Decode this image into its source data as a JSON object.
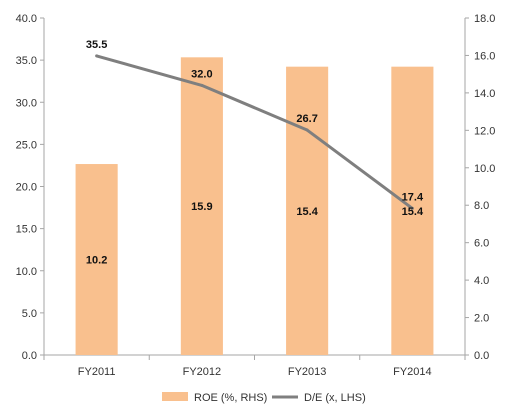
{
  "chart_data": {
    "type": "bar",
    "categories": [
      "FY2011",
      "FY2012",
      "FY2013",
      "FY2014"
    ],
    "series": [
      {
        "name": "ROE (%, RHS)",
        "kind": "bar",
        "axis": "right",
        "values": [
          10.2,
          15.9,
          15.4,
          15.4
        ],
        "data_labels": [
          "10.2",
          "15.9",
          "15.4",
          "15.4"
        ],
        "color": "#F9C08E"
      },
      {
        "name": "D/E (x, LHS)",
        "kind": "line",
        "axis": "left",
        "values": [
          35.5,
          32.0,
          26.7,
          17.4
        ],
        "data_labels": [
          "35.5",
          "32.0",
          "26.7",
          "17.4"
        ],
        "color": "#7F7F7F"
      }
    ],
    "left_axis": {
      "ylim": [
        0,
        40
      ],
      "ticks": [
        "0.0",
        "5.0",
        "10.0",
        "15.0",
        "20.0",
        "25.0",
        "30.0",
        "35.0",
        "40.0"
      ]
    },
    "right_axis": {
      "ylim": [
        0,
        18
      ],
      "ticks": [
        "0.0",
        "2.0",
        "4.0",
        "6.0",
        "8.0",
        "10.0",
        "12.0",
        "14.0",
        "16.0",
        "18.0"
      ]
    },
    "grid": false,
    "legend_position": "bottom"
  },
  "legend": {
    "roe_label": "ROE (%, RHS)",
    "de_label": "D/E (x, LHS)"
  }
}
